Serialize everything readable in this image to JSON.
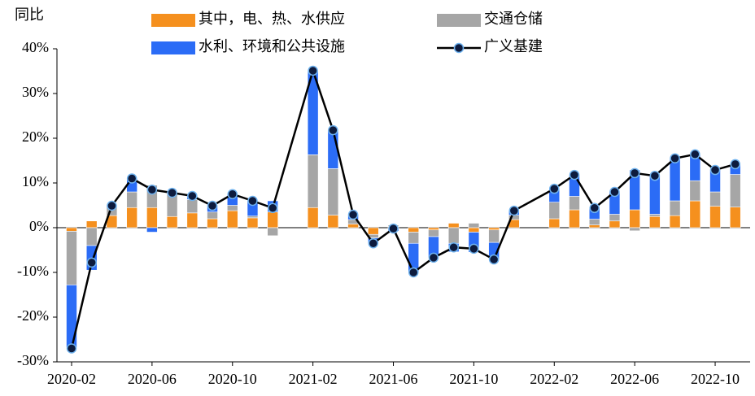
{
  "chart_data": {
    "type": "bar",
    "ylabel": "同比",
    "categories": [
      "2020-02",
      null,
      null,
      null,
      "2020-06",
      null,
      null,
      null,
      "2020-10",
      null,
      null,
      null,
      "2021-02",
      null,
      null,
      null,
      "2021-06",
      null,
      null,
      null,
      "2021-10",
      null,
      null,
      null,
      "2022-02",
      null,
      null,
      null,
      "2022-06",
      null,
      null,
      null,
      "2022-10",
      null
    ],
    "series": [
      {
        "name": "其中，电、热、水供应",
        "type": "bar",
        "color": "#f5901e",
        "values": [
          -0.8,
          1.5,
          2.7,
          4.5,
          4.5,
          2.5,
          3.3,
          2,
          3.8,
          2.2,
          3.5,
          null,
          4.5,
          2.8,
          0.8,
          -1.5,
          0.3,
          -1,
          -0.5,
          1,
          -1,
          -0.5,
          1.8,
          null,
          2,
          4,
          0.6,
          1.5,
          4,
          2.5,
          2.7,
          6,
          4.8,
          4.6
        ]
      },
      {
        "name": "交通仓储",
        "type": "bar",
        "color": "#a6a6a6",
        "values": [
          -12,
          -4,
          2,
          3.5,
          5,
          5,
          3,
          1.5,
          1.2,
          0.4,
          -1.8,
          null,
          11.8,
          10.4,
          1,
          -0.8,
          0.3,
          -2.5,
          -1.5,
          -3.5,
          1,
          -2.8,
          1,
          null,
          3.7,
          3,
          1.3,
          1.5,
          -0.7,
          0.5,
          3.3,
          4.5,
          3.2,
          7.3
        ]
      },
      {
        "name": "水利、环境和公共设施",
        "type": "bar",
        "color": "#2b6cf6",
        "values": [
          -14,
          -5.5,
          0.2,
          3,
          -1,
          0.3,
          0.8,
          1.4,
          2.5,
          3.4,
          2.5,
          null,
          18.7,
          8.6,
          1.1,
          -1.2,
          -0.8,
          -6.5,
          -4.7,
          -1.9,
          -4.5,
          -3.8,
          1,
          null,
          3,
          4.8,
          2.5,
          5,
          8.9,
          8.6,
          9.5,
          5.9,
          4.9,
          2.3
        ]
      },
      {
        "name": "广义基建",
        "type": "line",
        "color": "#000000",
        "values": [
          -27,
          -7.8,
          4.9,
          11,
          8.5,
          7.8,
          7.1,
          4.9,
          7.5,
          6,
          4.4,
          null,
          35.1,
          21.8,
          2.9,
          -3.5,
          -0.2,
          -10,
          -6.7,
          -4.4,
          -4.7,
          -7.1,
          3.8,
          null,
          8.7,
          11.8,
          4.4,
          8,
          12.2,
          11.6,
          15.5,
          16.4,
          12.9,
          14.2
        ]
      }
    ],
    "ylim": [
      -30,
      40
    ],
    "yticks": [
      {
        "value": -30,
        "label": "-30%"
      },
      {
        "value": -20,
        "label": "-20%"
      },
      {
        "value": -10,
        "label": "-10%"
      },
      {
        "value": 0,
        "label": "0%"
      },
      {
        "value": 10,
        "label": "10%"
      },
      {
        "value": 20,
        "label": "20%"
      },
      {
        "value": 30,
        "label": "30%"
      },
      {
        "value": 40,
        "label": "40%"
      }
    ]
  }
}
